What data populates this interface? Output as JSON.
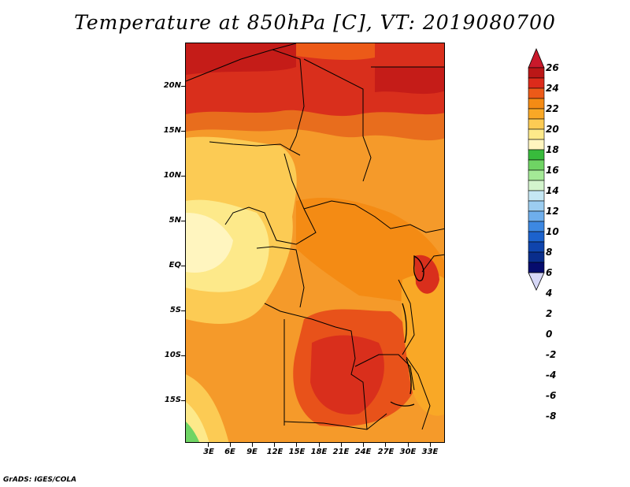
{
  "title": "Temperature at 850hPa [C], VT: 2019080700",
  "latitude_labels": [
    "20N",
    "15N",
    "10N",
    "5N",
    "EQ",
    "5S",
    "10S",
    "15S"
  ],
  "longitude_labels": [
    "3E",
    "6E",
    "9E",
    "12E",
    "15E",
    "18E",
    "21E",
    "24E",
    "27E",
    "30E",
    "33E"
  ],
  "colorbar": {
    "labels": [
      "26",
      "24",
      "22",
      "20",
      "18",
      "16",
      "14",
      "12",
      "10",
      "8",
      "6",
      "4",
      "2",
      "0",
      "-2",
      "-4",
      "-6",
      "-8"
    ],
    "colors": [
      "#bb1717",
      "#dc2b1b",
      "#ec5a18",
      "#f48b14",
      "#f9a826",
      "#fccb54",
      "#fde98a",
      "#fff5bf",
      "#38bb3c",
      "#6fd464",
      "#a4e996",
      "#d3f4cd",
      "#c5e7f4",
      "#9ccdf0",
      "#6eaeec",
      "#3d88e2",
      "#1c62cd",
      "#0f44ad",
      "#092d8c",
      "#060c6d"
    ],
    "under_color": "#d6d7f6",
    "over_color": "#c9192b"
  },
  "footer": "GrADS: IGES/COLA"
}
